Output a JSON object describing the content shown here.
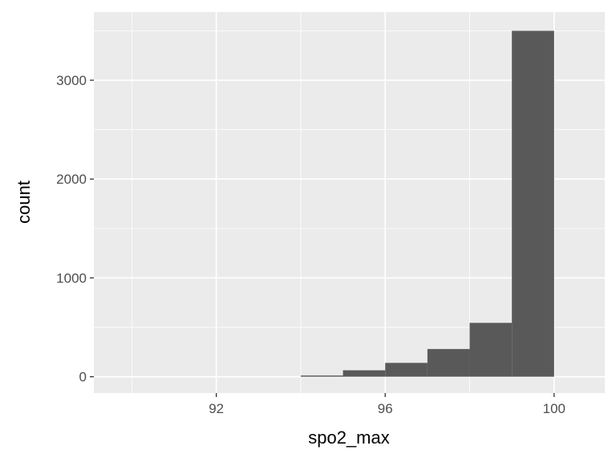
{
  "chart_data": {
    "type": "bar",
    "subtype": "histogram",
    "xlabel": "spo2_max",
    "ylabel": "count",
    "xlim": [
      89.1,
      101.2
    ],
    "ylim": [
      -165,
      3690
    ],
    "x_ticks": [
      92,
      96,
      100
    ],
    "x_tick_labels": [
      "92",
      "96",
      "100"
    ],
    "y_ticks": [
      0,
      1000,
      2000,
      3000
    ],
    "y_tick_labels": [
      "0",
      "1000",
      "2000",
      "3000"
    ],
    "bins": [
      {
        "x0": 94,
        "x1": 95,
        "count": 12
      },
      {
        "x0": 95,
        "x1": 96,
        "count": 65
      },
      {
        "x0": 96,
        "x1": 97,
        "count": 140
      },
      {
        "x0": 97,
        "x1": 98,
        "count": 280
      },
      {
        "x0": 98,
        "x1": 99,
        "count": 545
      },
      {
        "x0": 99,
        "x1": 100,
        "count": 3500
      }
    ],
    "colors": {
      "bar": "#595959",
      "panel": "#ebebeb",
      "grid": "#ffffff",
      "tick_text": "#4d4d4d",
      "title_text": "#000000"
    },
    "grid": true,
    "legend": "none"
  }
}
